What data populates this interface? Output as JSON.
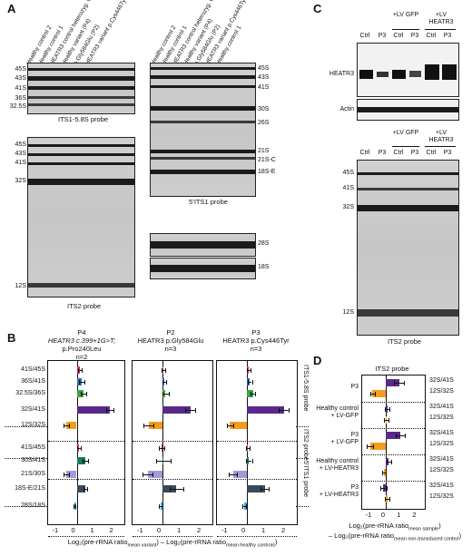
{
  "panels": {
    "a": "A",
    "b": "B",
    "c": "C",
    "d": "D"
  },
  "panelA": {
    "lanes": [
      "Healthy control 2",
      "Healthy control 1",
      "HEATR3 control heterozyg. variant (P4)",
      "Healthy variant (P4)",
      "p.Gly584Glu (P2)",
      "HEATR3 variant p.Cys446Tyr (P3)"
    ],
    "lanes_right": [
      "Healthy control 2",
      "Healthy control 1",
      "HEATR3 control heterozyg. variant (P4)",
      "Healthy variant (P4)",
      "p.Gly584Glu (P2)",
      "HEATR3 variant p.Cys446Tyr (P3)",
      "Healthy control 1"
    ],
    "its1_labels": [
      "45S",
      "43S",
      "41S",
      "36S",
      "32.5S"
    ],
    "its1_probe": "ITS1-5.8S probe",
    "its2_labels": [
      "45S",
      "43S",
      "41S",
      "32S",
      "12S"
    ],
    "its2_probe": "ITS2 probe",
    "five_labels": [
      "45S",
      "43S",
      "41S",
      "30S",
      "26S",
      "21S",
      "21S-C",
      "18S-E"
    ],
    "five_probe": "5’ITS1 probe",
    "rrna_labels": [
      "28S",
      "18S"
    ]
  },
  "panelC": {
    "header_top": [
      "+LV GFP",
      "+LV HEATR3"
    ],
    "lane_labels": [
      "Ctrl",
      "P3",
      "Ctrl",
      "P3",
      "Ctrl",
      "P3"
    ],
    "wb_labels": [
      "HEATR3",
      "Actin"
    ],
    "nb_labels": [
      "45S",
      "41S",
      "32S",
      "12S"
    ],
    "probe": "ITS2 probe"
  },
  "panelB": {
    "titles": [
      {
        "line1": "P4",
        "line2": "HEATR3 c.399+1G>T;",
        "line3": "p.Pro240Leu",
        "line4": "n=2"
      },
      {
        "line1": "P2",
        "line2": "HEATR3 p.Gly584Glu",
        "line3": "",
        "line4": "n=3"
      },
      {
        "line1": "P3",
        "line2": "HEATR3 p.Cys446Tyr",
        "line3": "",
        "line4": "n=3"
      }
    ],
    "row_labels": [
      "41S/45S",
      "36S/41S",
      "32.5S/36S",
      "32S/41S",
      "12S/32S",
      "41S/45S",
      "30S/41S",
      "21S/30S",
      "18S-E/21S",
      "28S/18S"
    ],
    "groups": [
      "ITS1-5.8S probe",
      "ITS2 probe",
      "5’ITS1 probe"
    ],
    "ticks": [
      "-1",
      "0",
      "1",
      "2"
    ],
    "xlabel1": "Log₂(pre-rRNA ratio",
    "xlabel1_sub": "mean variant",
    "xlabel2": ") – Log₂(pre-rRNA ratio",
    "xlabel2_sub": "mean healthy controls",
    "xlabel3": ")"
  },
  "panelD": {
    "title": "ITS2 probe",
    "groups": [
      "P3",
      "Healthy control + LV-GFP",
      "P3 + LV-GFP",
      "Healthy control + LV-HEATR3",
      "P3 + LV-HEATR3"
    ],
    "group_lines": [
      [
        "P3"
      ],
      [
        "Healthy control",
        "+ LV-GFP"
      ],
      [
        "P3",
        "+ LV-GFP"
      ],
      [
        "Healthy control",
        "+ LV-HEATR3"
      ],
      [
        "P3",
        "+ LV-HEATR3"
      ]
    ],
    "ratio_labels": [
      "32S/41S",
      "12S/32S"
    ],
    "ticks": [
      "-1",
      "0",
      "1",
      "2"
    ],
    "xlabel1": "Log₂(pre-rRNA ratio",
    "xlabel1_sub": "mean sample",
    "xlabel2": ")",
    "xlabel3": "– Log₂(pre-rRNA ratio",
    "xlabel3_sub": "mean non-transduced control",
    "xlabel4": ")"
  },
  "chart_data": [
    {
      "type": "bar",
      "panel": "B-P4",
      "categories": [
        "41S/45S",
        "36S/41S",
        "32.5S/36S",
        "32S/41S",
        "12S/32S",
        "41S/45S",
        "30S/41S",
        "21S/30S",
        "18S-E/21S",
        "28S/18S"
      ],
      "values": [
        0.15,
        0.25,
        0.35,
        1.75,
        -0.55,
        0.1,
        0.45,
        -0.55,
        0.45,
        -0.1
      ],
      "errors": [
        0.1,
        0.15,
        0.15,
        0.2,
        0.15,
        0.1,
        0.15,
        0.15,
        0.1,
        0.05
      ],
      "xlim": [
        -1.5,
        2.5
      ]
    },
    {
      "type": "bar",
      "panel": "B-P2",
      "categories": [
        "41S/45S",
        "36S/41S",
        "32.5S/36S",
        "32S/41S",
        "12S/32S",
        "41S/45S",
        "30S/41S",
        "21S/30S",
        "18S-E/21S",
        "28S/18S"
      ],
      "values": [
        0.05,
        0.1,
        0.15,
        1.4,
        -0.7,
        -0.05,
        0.05,
        -0.75,
        0.7,
        -0.1
      ],
      "errors": [
        0.1,
        0.1,
        0.15,
        0.25,
        0.25,
        0.15,
        0.35,
        0.25,
        0.35,
        0.1
      ],
      "xlim": [
        -1.5,
        2.5
      ]
    },
    {
      "type": "bar",
      "panel": "B-P3",
      "categories": [
        "41S/45S",
        "36S/41S",
        "32.5S/36S",
        "32S/41S",
        "12S/32S",
        "41S/45S",
        "30S/41S",
        "21S/30S",
        "18S-E/21S",
        "28S/18S"
      ],
      "values": [
        0.1,
        0.15,
        0.3,
        1.85,
        -0.85,
        0.05,
        0.1,
        -0.7,
        0.9,
        -0.15
      ],
      "errors": [
        0.1,
        0.1,
        0.1,
        0.25,
        0.15,
        0.1,
        0.15,
        0.2,
        0.2,
        0.1
      ],
      "xlim": [
        -1.5,
        2.5
      ]
    },
    {
      "type": "bar",
      "panel": "D",
      "categories": [
        "P3 32S/41S",
        "P3 12S/32S",
        "HC+LV-GFP 32S/41S",
        "HC+LV-GFP 12S/32S",
        "P3+LV-GFP 32S/41S",
        "P3+LV-GFP 12S/32S",
        "HC+LV-HEATR3 32S/41S",
        "HC+LV-HEATR3 12S/32S",
        "P3+LV-HEATR3 32S/41S",
        "P3+LV-HEATR3 12S/32S"
      ],
      "values": [
        0.85,
        -0.85,
        0.1,
        0.05,
        0.95,
        -1.0,
        0.2,
        -0.1,
        -0.15,
        0.1
      ],
      "errors": [
        0.3,
        0.15,
        0.15,
        0.15,
        0.3,
        0.2,
        0.15,
        0.1,
        0.2,
        0.15
      ],
      "xlim": [
        -1.5,
        2.5
      ]
    }
  ],
  "colors": {
    "c1": "#d62a6b",
    "c2": "#2a6cb0",
    "c3": "#3aa54a",
    "c4": "#5a2a8a",
    "c5": "#f39c1f",
    "c6": "#d62a6b",
    "c7": "#1e7a5a",
    "c8": "#a598d8",
    "c9": "#3a4a5a",
    "c10": "#3aa6dc",
    "d_purple": "#5a2a8a",
    "d_orange": "#f39c1f"
  }
}
